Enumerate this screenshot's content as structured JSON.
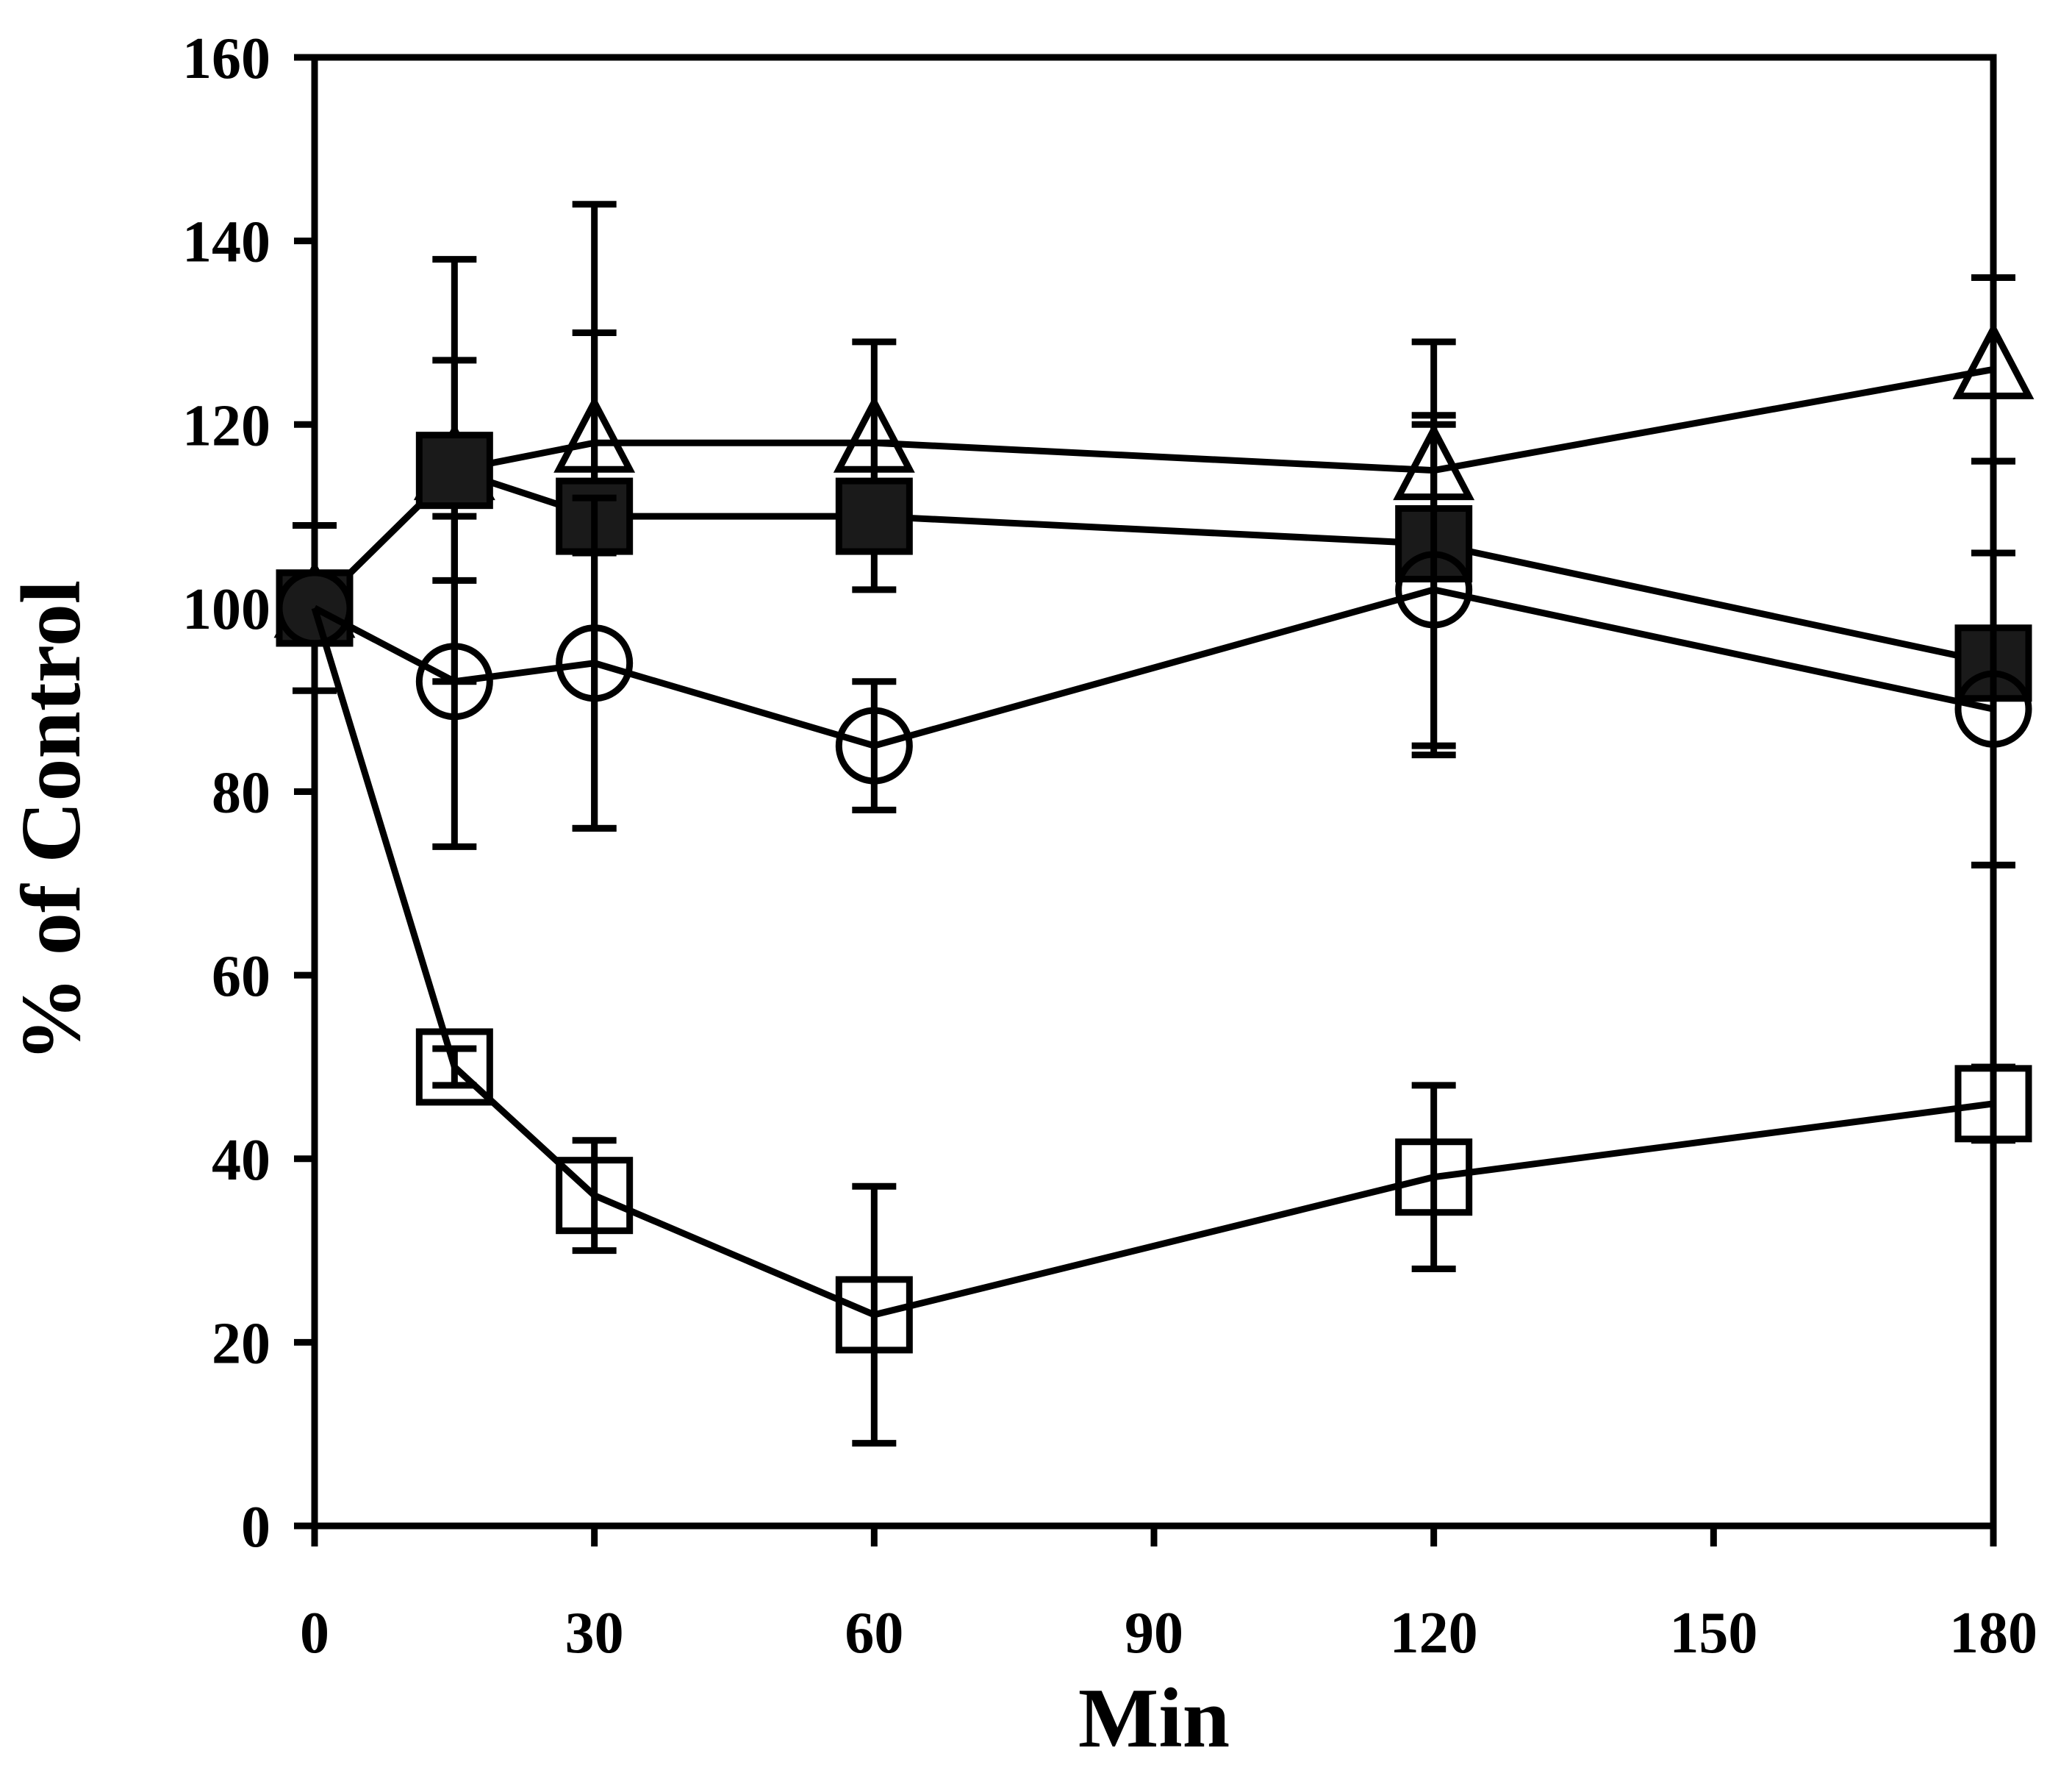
{
  "chart_data": {
    "type": "line",
    "title": "",
    "xlabel": "Min",
    "ylabel": "% of Control",
    "xlim": [
      0,
      180
    ],
    "ylim": [
      0,
      160
    ],
    "xticks": [
      0,
      30,
      60,
      90,
      120,
      150,
      180
    ],
    "yticks": [
      0,
      20,
      40,
      60,
      80,
      100,
      120,
      140,
      160
    ],
    "grid": false,
    "legend": null,
    "series": [
      {
        "name": "open-triangle",
        "marker": "triangle-open",
        "x": [
          0,
          15,
          30,
          60,
          120,
          180
        ],
        "y": [
          100,
          115,
          118,
          118,
          115,
          126
        ],
        "err": [
          0,
          12,
          12,
          11,
          6,
          10
        ]
      },
      {
        "name": "filled-square",
        "marker": "square-filled",
        "x": [
          0,
          15,
          30,
          60,
          120,
          180
        ],
        "y": [
          100,
          115,
          110,
          110,
          107,
          94
        ],
        "err": [
          9,
          23,
          34,
          8,
          22,
          22
        ]
      },
      {
        "name": "open-circle",
        "marker": "circle-open",
        "x": [
          0,
          15,
          30,
          60,
          120,
          180
        ],
        "y": [
          100,
          92,
          94,
          85,
          102,
          89
        ],
        "err": [
          0,
          18,
          18,
          7,
          18,
          17
        ]
      },
      {
        "name": "open-square",
        "marker": "square-open",
        "x": [
          0,
          15,
          30,
          60,
          120,
          180
        ],
        "y": [
          100,
          50,
          36,
          23,
          38,
          46
        ],
        "err": [
          0,
          2,
          6,
          14,
          10,
          4
        ]
      }
    ]
  }
}
